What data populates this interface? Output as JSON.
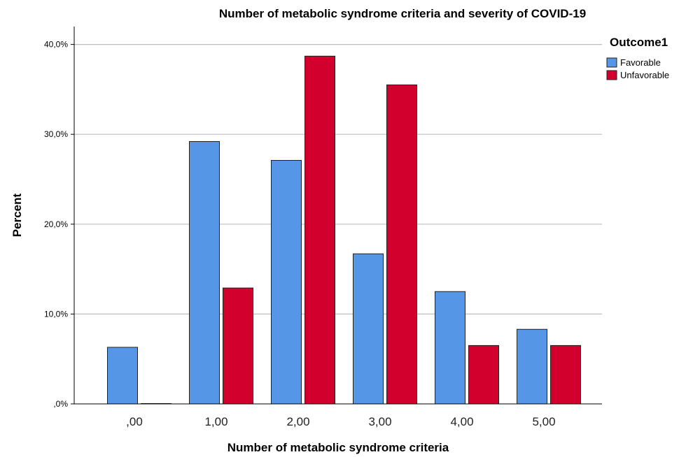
{
  "chart_data": {
    "type": "bar",
    "title": "Number of metabolic syndrome criteria and severity of COVID-19",
    "xlabel": "Number of metabolic syndrome criteria",
    "ylabel": "Percent",
    "categories": [
      ",00",
      "1,00",
      "2,00",
      "3,00",
      "4,00",
      "5,00"
    ],
    "series": [
      {
        "name": "Favorable",
        "values": [
          6.3,
          29.2,
          27.1,
          16.7,
          12.5,
          8.3
        ],
        "color": "#5596e6"
      },
      {
        "name": "Unfavorable",
        "values": [
          0.0,
          12.9,
          38.7,
          35.5,
          6.5,
          6.5
        ],
        "color": "#d2002c"
      }
    ],
    "ylim": [
      0,
      42
    ],
    "yticks": [
      0,
      10,
      20,
      30,
      40
    ],
    "ytick_labels": [
      ",0%",
      "10,0%",
      "20,0%",
      "30,0%",
      "40,0%"
    ],
    "grid": true,
    "legend": {
      "title": "Outcome1",
      "position": "right"
    }
  }
}
